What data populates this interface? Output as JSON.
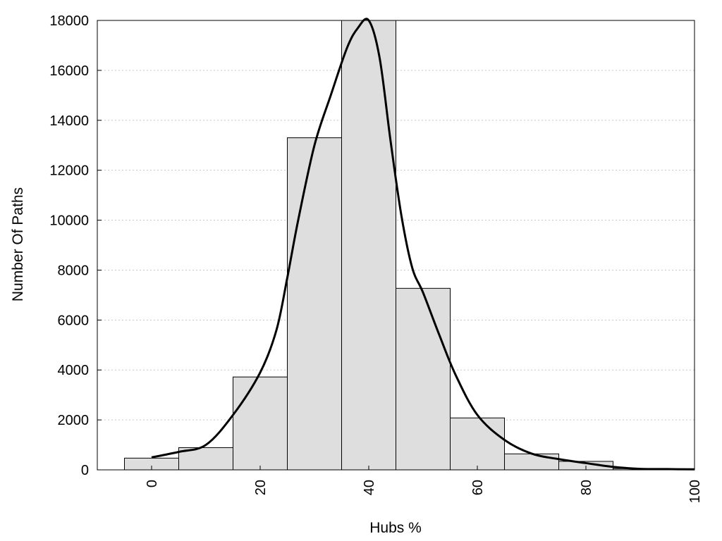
{
  "chart_data": {
    "type": "bar",
    "title": "",
    "xlabel": "Hubs %",
    "ylabel": "Number Of Paths",
    "xlim": [
      -10,
      100
    ],
    "ylim": [
      0,
      18000
    ],
    "x_ticks": [
      "0",
      "20",
      "40",
      "60",
      "80",
      "100"
    ],
    "y_ticks": [
      "0",
      "2000",
      "4000",
      "6000",
      "8000",
      "10000",
      "12000",
      "14000",
      "16000",
      "18000"
    ],
    "grid": "horizontal dotted",
    "legend": "none",
    "bin_width": 10,
    "bins": [
      0,
      10,
      20,
      30,
      40,
      50,
      60,
      70,
      80,
      90
    ],
    "values": [
      470,
      890,
      3720,
      13300,
      18000,
      7270,
      2080,
      640,
      340,
      50
    ],
    "curve": {
      "x": [
        0,
        5,
        10,
        15,
        20,
        23,
        25,
        27,
        30,
        33,
        36,
        38,
        40,
        42,
        44,
        46,
        48,
        50,
        53,
        56,
        60,
        65,
        70,
        75,
        80,
        85,
        90,
        95,
        100
      ],
      "y": [
        500,
        720,
        1000,
        2200,
        3900,
        5600,
        7700,
        10000,
        13000,
        15000,
        16900,
        17700,
        18000,
        16500,
        13200,
        10200,
        8100,
        7100,
        5400,
        3800,
        2200,
        1200,
        650,
        430,
        270,
        120,
        40,
        30,
        20
      ]
    },
    "colors": {
      "bar_fill": "#dedede",
      "bar_stroke": "#000000",
      "line": "#000000",
      "grid": "#c8c8c8"
    }
  }
}
